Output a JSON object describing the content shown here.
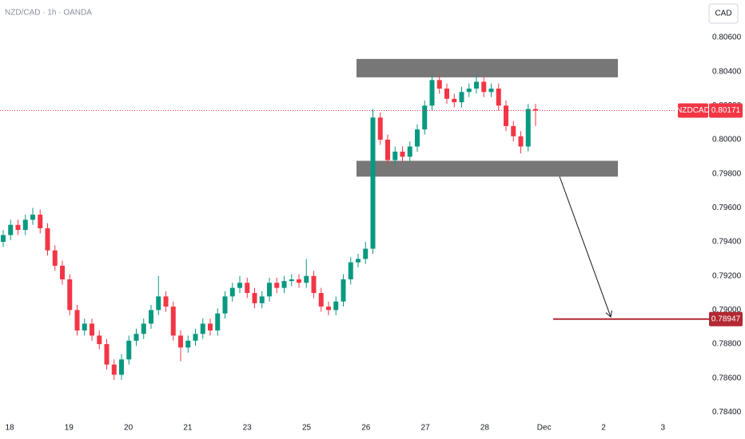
{
  "chart_data": {
    "type": "candlestick",
    "title": "NZD/CAD · 1h · OANDA",
    "currency": "CAD",
    "symbol": "NZDCAD",
    "open": [
      0.794,
      0.7944,
      0.795,
      0.7947,
      0.7953,
      0.7956,
      0.7948,
      0.7935,
      0.7926,
      0.7918,
      0.79,
      0.7888,
      0.7892,
      0.7885,
      0.788,
      0.7868,
      0.7862,
      0.7871,
      0.7882,
      0.7886,
      0.7892,
      0.79,
      0.7908,
      0.7902,
      0.7885,
      0.7878,
      0.7882,
      0.7886,
      0.7892,
      0.7888,
      0.7898,
      0.7908,
      0.7913,
      0.7916,
      0.791,
      0.7904,
      0.7908,
      0.7916,
      0.7913,
      0.7917,
      0.7918,
      0.7916,
      0.792,
      0.791,
      0.7902,
      0.79,
      0.7905,
      0.7918,
      0.7928,
      0.793,
      0.7936,
      0.8013,
      0.8,
      0.7988,
      0.7993,
      0.799,
      0.7996,
      0.8006,
      0.802,
      0.8035,
      0.803,
      0.8024,
      0.8022,
      0.8028,
      0.803,
      0.8034,
      0.8028,
      0.803,
      0.802,
      0.8008,
      0.8002,
      0.7996,
      0.8018
    ],
    "high": [
      0.7947,
      0.7953,
      0.7953,
      0.7956,
      0.796,
      0.7959,
      0.7951,
      0.7938,
      0.7929,
      0.7921,
      0.7903,
      0.7895,
      0.7895,
      0.7888,
      0.7883,
      0.7871,
      0.7874,
      0.7885,
      0.7889,
      0.7895,
      0.7903,
      0.792,
      0.7911,
      0.7905,
      0.7888,
      0.7885,
      0.7889,
      0.7895,
      0.7895,
      0.7901,
      0.7911,
      0.7916,
      0.792,
      0.7919,
      0.7913,
      0.7911,
      0.7919,
      0.7919,
      0.792,
      0.7921,
      0.7921,
      0.793,
      0.7923,
      0.7913,
      0.7905,
      0.7908,
      0.7921,
      0.7931,
      0.7933,
      0.794,
      0.8018,
      0.8016,
      0.8003,
      0.7996,
      0.7996,
      0.7999,
      0.8009,
      0.8023,
      0.8038,
      0.8038,
      0.8033,
      0.8027,
      0.8031,
      0.8033,
      0.8038,
      0.8037,
      0.8033,
      0.8033,
      0.8023,
      0.8011,
      0.8005,
      0.8021,
      0.8021
    ],
    "low": [
      0.7937,
      0.7941,
      0.7944,
      0.7944,
      0.795,
      0.7945,
      0.7932,
      0.7923,
      0.7915,
      0.7897,
      0.7885,
      0.7885,
      0.7882,
      0.7877,
      0.7865,
      0.7859,
      0.7859,
      0.7868,
      0.7879,
      0.7883,
      0.7889,
      0.7897,
      0.7899,
      0.7882,
      0.787,
      0.7875,
      0.7879,
      0.7883,
      0.7885,
      0.7885,
      0.7895,
      0.7905,
      0.791,
      0.7907,
      0.7901,
      0.7901,
      0.7905,
      0.791,
      0.791,
      0.7914,
      0.7913,
      0.7913,
      0.7907,
      0.7899,
      0.7897,
      0.7897,
      0.7902,
      0.7915,
      0.7925,
      0.7927,
      0.7933,
      0.7997,
      0.7985,
      0.7985,
      0.7987,
      0.7987,
      0.7993,
      0.8003,
      0.8017,
      0.8027,
      0.8021,
      0.8019,
      0.8019,
      0.8025,
      0.8027,
      0.8025,
      0.8025,
      0.8017,
      0.8005,
      0.7999,
      0.7992,
      0.7993,
      0.8008
    ],
    "close": [
      0.7944,
      0.795,
      0.7947,
      0.7953,
      0.7956,
      0.7948,
      0.7935,
      0.7926,
      0.7918,
      0.79,
      0.7888,
      0.7892,
      0.7885,
      0.788,
      0.7868,
      0.7862,
      0.7871,
      0.7882,
      0.7886,
      0.7892,
      0.79,
      0.7908,
      0.7902,
      0.7885,
      0.7878,
      0.7882,
      0.7886,
      0.7892,
      0.7888,
      0.7898,
      0.7908,
      0.7913,
      0.7916,
      0.791,
      0.7904,
      0.7908,
      0.7916,
      0.7913,
      0.7917,
      0.7918,
      0.7916,
      0.792,
      0.791,
      0.7902,
      0.79,
      0.7905,
      0.7918,
      0.7928,
      0.793,
      0.7936,
      0.8013,
      0.8,
      0.7988,
      0.7993,
      0.799,
      0.7996,
      0.8006,
      0.802,
      0.8035,
      0.803,
      0.8024,
      0.8022,
      0.8028,
      0.803,
      0.8034,
      0.8028,
      0.803,
      0.802,
      0.8008,
      0.8002,
      0.7996,
      0.8018,
      0.80171
    ],
    "up_color": "#089981",
    "down_color": "#f23645",
    "xlabels": [
      "18",
      "19",
      "20",
      "21",
      "23",
      "25",
      "26",
      "27",
      "28",
      "Dec",
      "2",
      "3"
    ],
    "ylim": [
      0.7836,
      0.8082
    ],
    "yticks": [
      {
        "value": 0.806,
        "label": "0.80600"
      },
      {
        "value": 0.804,
        "label": "0.80400"
      },
      {
        "value": 0.802,
        "label": "0.80200"
      },
      {
        "value": 0.8,
        "label": "0.80000"
      },
      {
        "value": 0.798,
        "label": "0.79800"
      },
      {
        "value": 0.796,
        "label": "0.79600"
      },
      {
        "value": 0.794,
        "label": "0.79400"
      },
      {
        "value": 0.792,
        "label": "0.79200"
      },
      {
        "value": 0.79,
        "label": "0.79000"
      },
      {
        "value": 0.788,
        "label": "0.78800"
      },
      {
        "value": 0.786,
        "label": "0.78600"
      },
      {
        "value": 0.784,
        "label": "0.78400"
      }
    ],
    "zones": [
      {
        "top": 0.80474,
        "bottom": 0.80366
      },
      {
        "top": 0.79876,
        "bottom": 0.79783
      }
    ],
    "zone_color": "#777777",
    "last_price": 0.80171,
    "target": 0.78947,
    "target_color": "#b22833"
  }
}
